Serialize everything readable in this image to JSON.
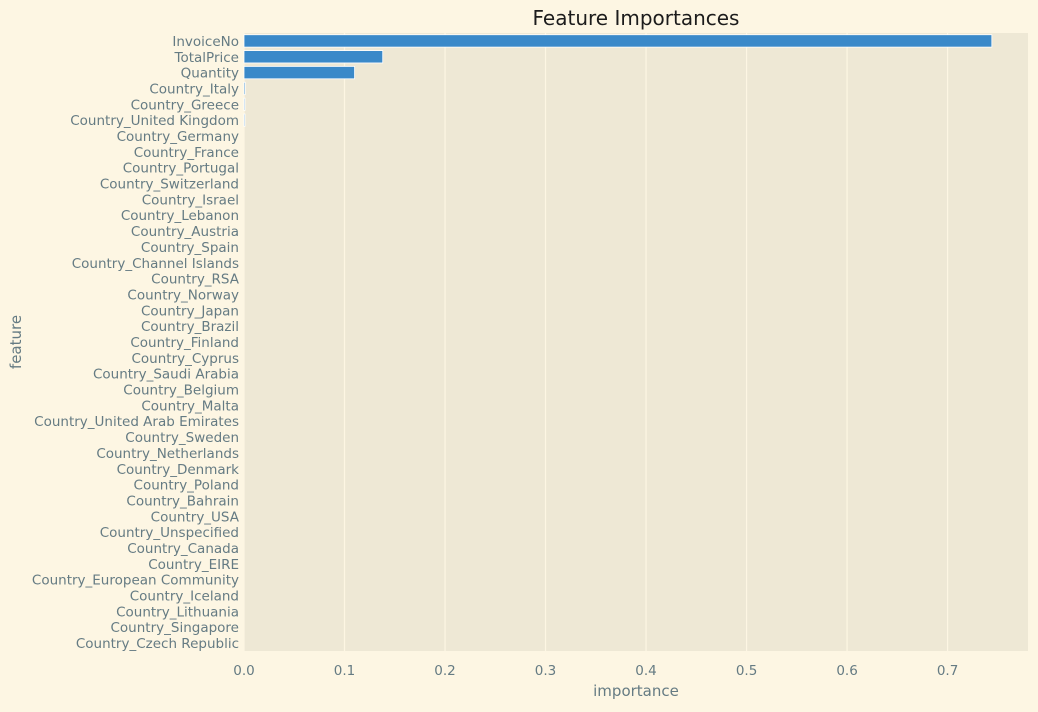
{
  "chart_data": {
    "type": "bar",
    "orientation": "horizontal",
    "title": "Feature Importances",
    "xlabel": "importance",
    "ylabel": "feature",
    "xlim": [
      0,
      0.78
    ],
    "x_ticks": [
      0.0,
      0.1,
      0.2,
      0.3,
      0.4,
      0.5,
      0.6,
      0.7
    ],
    "x_tick_labels": [
      "0.0",
      "0.1",
      "0.2",
      "0.3",
      "0.4",
      "0.5",
      "0.6",
      "0.7"
    ],
    "grid": true,
    "colors": {
      "figure_background": "#fdf6e3",
      "plot_background": "#eee8d5",
      "bar": "#3a89c9",
      "text": "#657b83",
      "title": "#1c1c1c",
      "grid": "#fdf6e3"
    },
    "categories": [
      "InvoiceNo",
      "TotalPrice",
      "Quantity",
      "Country_Italy",
      "Country_Greece",
      "Country_United Kingdom",
      "Country_Germany",
      "Country_France",
      "Country_Portugal",
      "Country_Switzerland",
      "Country_Israel",
      "Country_Lebanon",
      "Country_Austria",
      "Country_Spain",
      "Country_Channel Islands",
      "Country_RSA",
      "Country_Norway",
      "Country_Japan",
      "Country_Brazil",
      "Country_Finland",
      "Country_Cyprus",
      "Country_Saudi Arabia",
      "Country_Belgium",
      "Country_Malta",
      "Country_United Arab Emirates",
      "Country_Sweden",
      "Country_Netherlands",
      "Country_Denmark",
      "Country_Poland",
      "Country_Bahrain",
      "Country_USA",
      "Country_Unspecified",
      "Country_Canada",
      "Country_EIRE",
      "Country_European Community",
      "Country_Iceland",
      "Country_Lithuania",
      "Country_Singapore",
      "Country_Czech Republic"
    ],
    "values": [
      0.744,
      0.138,
      0.11,
      0.0012,
      0.001,
      0.001,
      0.0,
      0.0,
      0.0,
      0.0,
      0.0,
      0.0,
      0.0,
      0.0,
      0.0,
      0.0,
      0.0,
      0.0,
      0.0,
      0.0,
      0.0,
      0.0,
      0.0,
      0.0,
      0.0,
      0.0,
      0.0,
      0.0,
      0.0,
      0.0,
      0.0,
      0.0,
      0.0,
      0.0,
      0.0,
      0.0,
      0.0,
      0.0,
      0.0
    ]
  }
}
